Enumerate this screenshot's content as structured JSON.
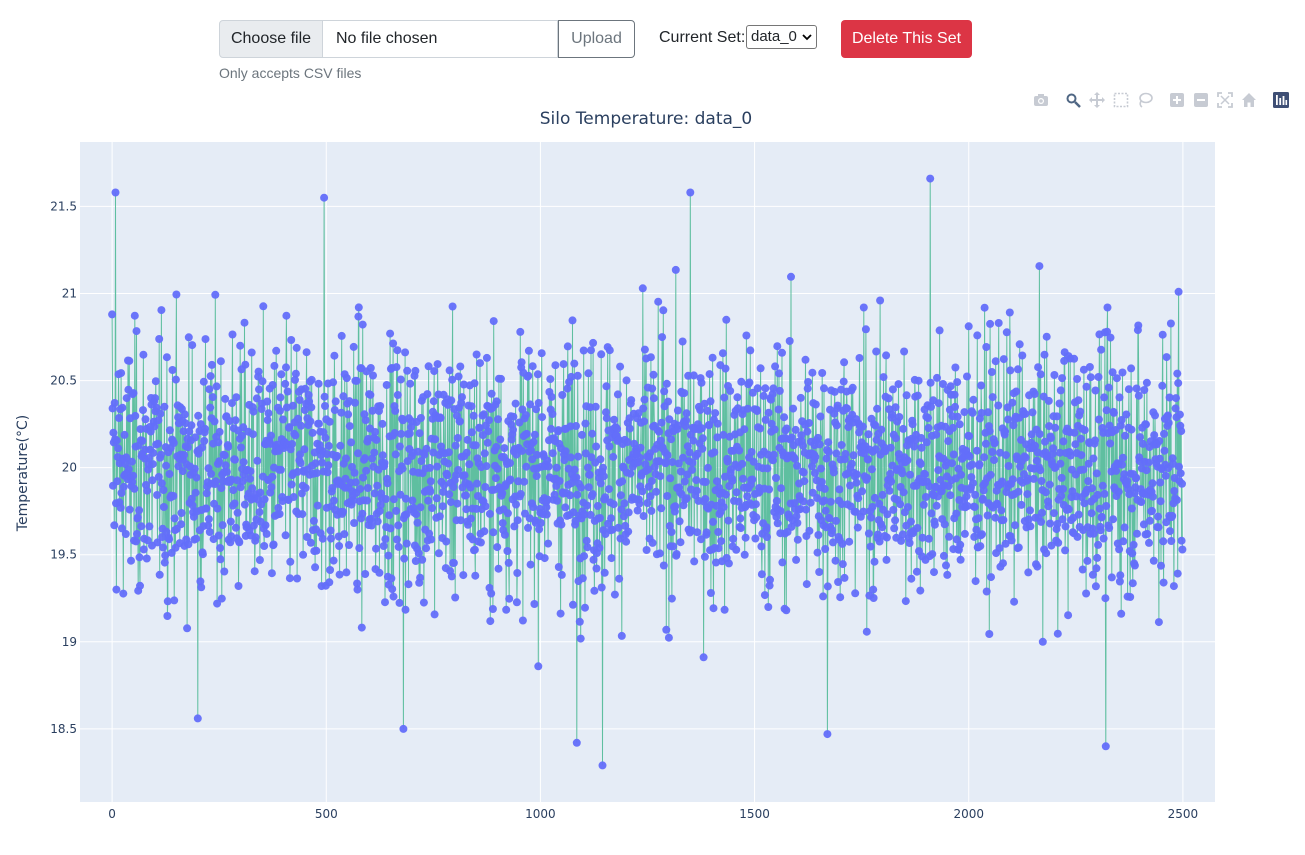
{
  "upload": {
    "choose_label": "Choose file",
    "file_name": "No file chosen",
    "upload_label": "Upload",
    "hint": "Only accepts CSV files"
  },
  "set_selector": {
    "label": "Current Set:",
    "selected": "data_0"
  },
  "delete_label": "Delete This Set",
  "modebar": [
    "camera-icon",
    "zoom-icon",
    "pan-icon",
    "box-select-icon",
    "lasso-icon",
    "zoom-in-icon",
    "zoom-out-icon",
    "autoscale-icon",
    "reset-axes-icon",
    "plotly-logo-icon"
  ],
  "colors": {
    "plot_bg": "#e5ecf6",
    "line": "#5fbfa0",
    "marker": "#636efa",
    "danger": "#dc3545"
  },
  "chart_data": {
    "type": "scatter",
    "mode": "lines+markers",
    "title": "Silo Temperature: data_0",
    "xlabel": "",
    "ylabel": "Temperature(°C)",
    "xlim": [
      -75,
      2575
    ],
    "ylim": [
      18.08,
      21.87
    ],
    "x_ticks": [
      0,
      500,
      1000,
      1500,
      2000,
      2500
    ],
    "x_tick_labels": [
      "0",
      "500",
      "1000",
      "1500",
      "2000",
      "2500"
    ],
    "y_ticks": [
      18.5,
      19,
      19.5,
      20,
      20.5,
      21,
      21.5
    ],
    "y_tick_labels": [
      "18.5",
      "19",
      "19.5",
      "20",
      "20.5",
      "21",
      "21.5"
    ],
    "grid": true,
    "series": [
      {
        "n_points": 2500,
        "x_start": 0,
        "x_step": 1,
        "mean": 20.0,
        "std": 0.5,
        "min": 18.29,
        "max": 21.66,
        "notable_points": [
          {
            "x": 0,
            "y": 20.88
          },
          {
            "x": 8,
            "y": 21.58
          },
          {
            "x": 200,
            "y": 18.56
          },
          {
            "x": 495,
            "y": 21.55
          },
          {
            "x": 680,
            "y": 18.5
          },
          {
            "x": 1085,
            "y": 18.42
          },
          {
            "x": 1145,
            "y": 18.29
          },
          {
            "x": 1350,
            "y": 21.58
          },
          {
            "x": 1670,
            "y": 18.47
          },
          {
            "x": 1910,
            "y": 21.66
          },
          {
            "x": 2320,
            "y": 18.4
          },
          {
            "x": 2490,
            "y": 21.01
          }
        ]
      }
    ]
  }
}
